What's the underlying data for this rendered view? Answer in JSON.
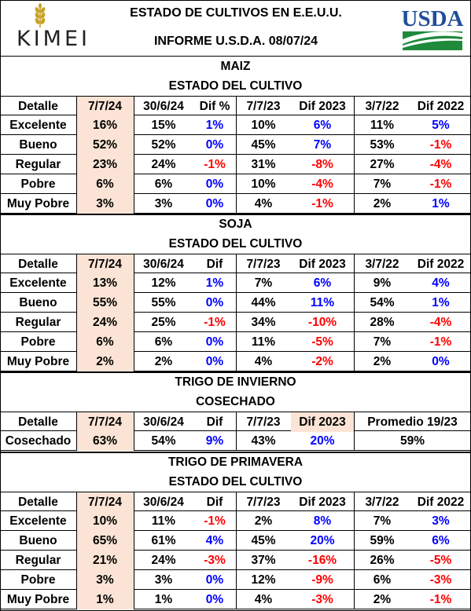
{
  "header": {
    "brand": "KIMEI",
    "title_line1": "ESTADO DE CULTIVOS EN  E.E.U.U.",
    "title_line2": "INFORME U.S.D.A.  08/07/24",
    "usda_text": "USDA"
  },
  "maiz": {
    "name": "MAIZ",
    "subtitle": "ESTADO DEL CULTIVO",
    "headers": [
      "Detalle",
      "7/7/24",
      "30/6/24",
      "Dif %",
      "7/7/23",
      "Dif 2023",
      "3/7/22",
      "Dif 2022"
    ],
    "rows": [
      [
        "Excelente",
        "16%",
        "15%",
        "1%",
        "10%",
        "6%",
        "11%",
        "5%"
      ],
      [
        "Bueno",
        "52%",
        "52%",
        "0%",
        "45%",
        "7%",
        "53%",
        "-1%"
      ],
      [
        "Regular",
        "23%",
        "24%",
        "-1%",
        "31%",
        "-8%",
        "27%",
        "-4%"
      ],
      [
        "Pobre",
        "6%",
        "6%",
        "0%",
        "10%",
        "-4%",
        "7%",
        "-1%"
      ],
      [
        "Muy Pobre",
        "3%",
        "3%",
        "0%",
        "4%",
        "-1%",
        "2%",
        "1%"
      ]
    ]
  },
  "soja": {
    "name": "SOJA",
    "subtitle": "ESTADO DEL CULTIVO",
    "headers": [
      "Detalle",
      "7/7/24",
      "30/6/24",
      "Dif",
      "7/7/23",
      "Dif 2023",
      "3/7/22",
      "Dif 2022"
    ],
    "rows": [
      [
        "Excelente",
        "13%",
        "12%",
        "1%",
        "7%",
        "6%",
        "9%",
        "4%"
      ],
      [
        "Bueno",
        "55%",
        "55%",
        "0%",
        "44%",
        "11%",
        "54%",
        "1%"
      ],
      [
        "Regular",
        "24%",
        "25%",
        "-1%",
        "34%",
        "-10%",
        "28%",
        "-4%"
      ],
      [
        "Pobre",
        "6%",
        "6%",
        "0%",
        "11%",
        "-5%",
        "7%",
        "-1%"
      ],
      [
        "Muy Pobre",
        "2%",
        "2%",
        "0%",
        "4%",
        "-2%",
        "2%",
        "0%"
      ]
    ]
  },
  "trigo_invierno": {
    "name": "TRIGO DE INVIERNO",
    "subtitle": "COSECHADO",
    "headers": [
      "Detalle",
      "7/7/24",
      "30/6/24",
      "Dif",
      "7/7/23",
      "Dif 2023",
      "Promedio 19/23"
    ],
    "row": [
      "Cosechado",
      "63%",
      "54%",
      "9%",
      "43%",
      "20%",
      "59%"
    ]
  },
  "trigo_primavera": {
    "name": "TRIGO DE PRIMAVERA",
    "subtitle": "ESTADO DEL CULTIVO",
    "headers": [
      "Detalle",
      "7/7/24",
      "30/6/24",
      "Dif",
      "7/7/23",
      "Dif 2023",
      "3/7/22",
      "Dif 2022"
    ],
    "rows": [
      [
        "Excelente",
        "10%",
        "11%",
        "-1%",
        "2%",
        "8%",
        "7%",
        "3%"
      ],
      [
        "Bueno",
        "65%",
        "61%",
        "4%",
        "45%",
        "20%",
        "59%",
        "6%"
      ],
      [
        "Regular",
        "21%",
        "24%",
        "-3%",
        "37%",
        "-16%",
        "26%",
        "-5%"
      ],
      [
        "Pobre",
        "3%",
        "3%",
        "0%",
        "12%",
        "-9%",
        "6%",
        "-3%"
      ],
      [
        "Muy Pobre",
        "1%",
        "1%",
        "0%",
        "4%",
        "-3%",
        "2%",
        "-1%"
      ]
    ]
  },
  "colors": {
    "highlight": "#fbe4d5",
    "positive": "#0000ff",
    "negative": "#ff0000",
    "usda_blue": "#1f4e9a",
    "usda_green": "#1f8a3c",
    "kimei_gold": "#c9a227"
  }
}
